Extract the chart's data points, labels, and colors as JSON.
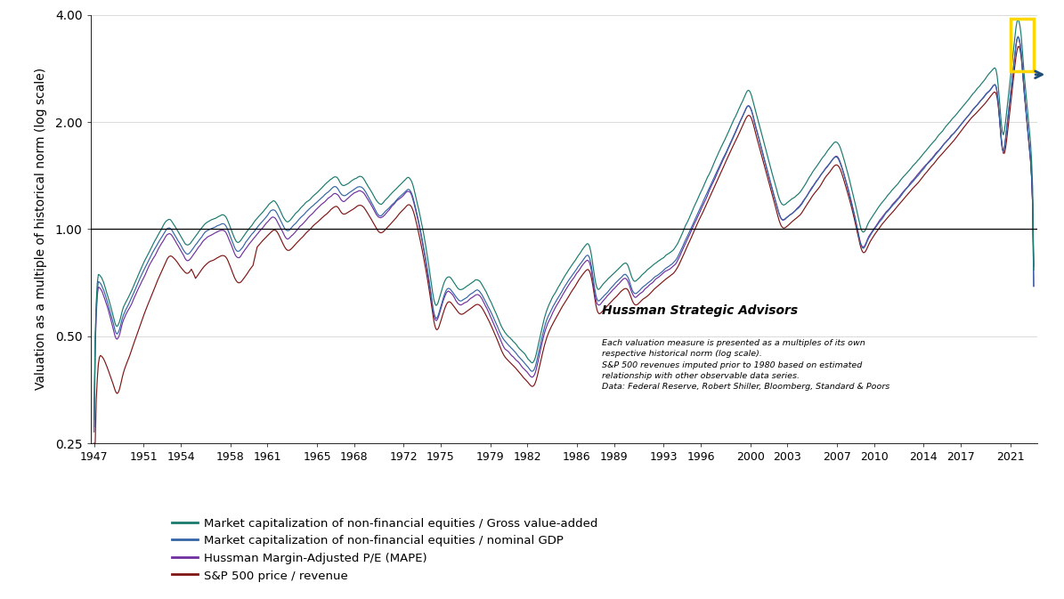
{
  "ylabel": "Valuation as a multiple of historical norm (log scale)",
  "xlim_start": 1947,
  "xlim_end": 2022.9,
  "ylim_low": 0.25,
  "ylim_high": 4.0,
  "yticks": [
    0.25,
    0.5,
    1.0,
    2.0,
    4.0
  ],
  "ytick_labels": [
    "0.25",
    "0.50",
    "1.00",
    "2.00",
    "4.00"
  ],
  "xticks": [
    1947,
    1951,
    1954,
    1958,
    1961,
    1965,
    1968,
    1972,
    1975,
    1979,
    1982,
    1986,
    1989,
    1993,
    1996,
    2000,
    2003,
    2007,
    2010,
    2014,
    2017,
    2021
  ],
  "line_colors": {
    "gva": "#1a7a6e",
    "gdp": "#3465a4",
    "mape": "#7030a0",
    "rev": "#7f1515"
  },
  "legend_labels": [
    "Market capitalization of non-financial equities / Gross value-added",
    "Market capitalization of non-financial equities / nominal GDP",
    "Hussman Margin-Adjusted P/E (MAPE)",
    "S&P 500 price / revenue"
  ],
  "annotation_title": "Hussman Strategic Advisors",
  "annotation_text": "Each valuation measure is presented as a multiples of its own\nrespective historical norm (log scale).\nS&P 500 revenues imputed prior to 1980 based on estimated\nrelationship with other observable data series.\nData: Federal Reserve, Robert Shiller, Bloomberg, Standard & Poors",
  "highlight_color": "#ffd700",
  "arrow_color": "#1f4e79",
  "background_color": "#ffffff",
  "hline_color": "#000000",
  "grid_color": "#cccccc"
}
